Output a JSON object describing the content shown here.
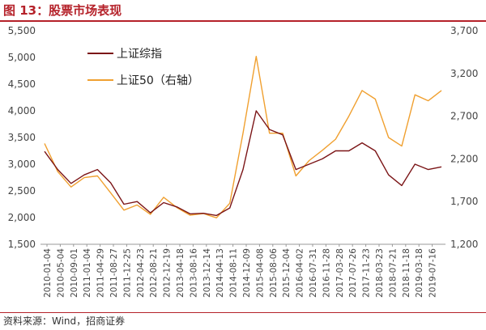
{
  "title": "图 13：股票市场表现",
  "source": "资料来源：Wind，招商证券",
  "colors": {
    "accent": "#b5222a",
    "series1": "#7b1517",
    "series2": "#f0a030"
  },
  "chart_data": {
    "type": "line",
    "left_axis": {
      "ticks": [
        "1,500",
        "2,000",
        "2,500",
        "3,000",
        "3,500",
        "4,000",
        "4,500",
        "5,000",
        "5,500"
      ],
      "range": [
        1500,
        5500
      ]
    },
    "right_axis": {
      "ticks": [
        "1,200",
        "1,700",
        "2,200",
        "2,700",
        "3,200",
        "3,700"
      ],
      "range": [
        1200,
        3700
      ]
    },
    "x_ticks": [
      "2010-01-04",
      "2010-05-04",
      "2010-09-01",
      "2011-01-04",
      "2011-04-29",
      "2011-08-27",
      "2011-12-25",
      "2012-04-23",
      "2012-08-21",
      "2012-12-19",
      "2013-04-18",
      "2013-08-16",
      "2013-12-14",
      "2014-04-13",
      "2014-08-11",
      "2014-12-09",
      "2015-04-08",
      "2015-08-06",
      "2015-12-04",
      "2016-04-02",
      "2016-07-31",
      "2016-11-28",
      "2017-03-28",
      "2017-07-26",
      "2017-11-23",
      "2018-03-23",
      "2018-07-21",
      "2018-11-18",
      "2019-03-18",
      "2019-07-16"
    ],
    "x": [
      0,
      1,
      2,
      3,
      4,
      5,
      6,
      7,
      8,
      9,
      10,
      11,
      12,
      13,
      14,
      15,
      16,
      17,
      18,
      19,
      20,
      21,
      22,
      23,
      24,
      25,
      26,
      27,
      28,
      29,
      30
    ],
    "series": [
      {
        "name": "上证综指",
        "axis": "left",
        "values": [
          3240,
          2900,
          2640,
          2800,
          2900,
          2650,
          2250,
          2300,
          2090,
          2280,
          2200,
          2070,
          2080,
          2040,
          2180,
          2900,
          4000,
          3650,
          3550,
          2900,
          3000,
          3100,
          3250,
          3250,
          3400,
          3250,
          2800,
          2600,
          3000,
          2900,
          2950
        ]
      },
      {
        "name": "上证50（右轴）",
        "axis": "right",
        "values": [
          2380,
          2050,
          1870,
          1980,
          2000,
          1800,
          1600,
          1660,
          1550,
          1750,
          1630,
          1540,
          1560,
          1510,
          1680,
          2500,
          3400,
          2500,
          2500,
          2000,
          2180,
          2300,
          2430,
          2700,
          3000,
          2900,
          2450,
          2350,
          2950,
          2880,
          3000
        ]
      }
    ],
    "legend": {
      "position": "top-left"
    },
    "grid": false
  }
}
